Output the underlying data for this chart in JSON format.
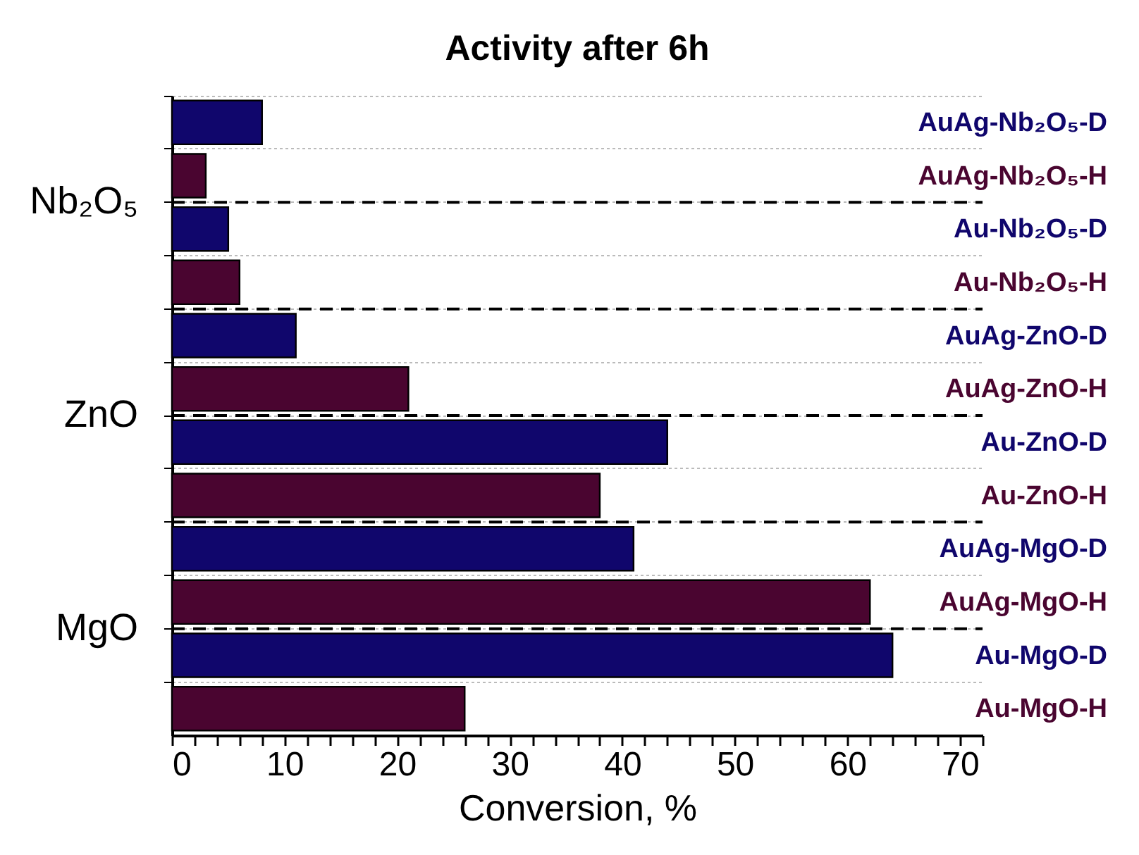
{
  "chart_data": {
    "type": "bar",
    "orientation": "horizontal",
    "title": "Activity after 6h",
    "xlabel": "Conversion, %",
    "categories": [
      "AuAg-Nb₂O₅-D",
      "AuAg-Nb₂O₅-H",
      "Au-Nb₂O₅-D",
      "Au-Nb₂O₅-H",
      "AuAg-ZnO-D",
      "AuAg-ZnO-H",
      "Au-ZnO-D",
      "Au-ZnO-H",
      "AuAg-MgO-D",
      "AuAg-MgO-H",
      "Au-MgO-D",
      "Au-MgO-H"
    ],
    "values": [
      8,
      3,
      5,
      6,
      11,
      21,
      44,
      38,
      41,
      62,
      64,
      26
    ],
    "colors": [
      "#10066c",
      "#4a0530",
      "#10066c",
      "#4a0530",
      "#10066c",
      "#4a0530",
      "#10066c",
      "#4a0530",
      "#10066c",
      "#4a0530",
      "#10066c",
      "#4a0530"
    ],
    "xlim": [
      0,
      72
    ],
    "xticks": [
      0,
      {
        "value": 2,
        "label": null
      },
      {
        "value": 4,
        "label": null
      },
      {
        "value": 6,
        "label": null
      },
      {
        "value": 8,
        "label": null
      },
      10,
      {
        "value": 12,
        "label": null
      },
      {
        "value": 14,
        "label": null
      },
      {
        "value": 16,
        "label": null
      },
      {
        "value": 18,
        "label": null
      },
      20,
      {
        "value": 22,
        "label": null
      },
      {
        "value": 24,
        "label": null
      },
      {
        "value": 26,
        "label": null
      },
      {
        "value": 28,
        "label": null
      },
      30,
      {
        "value": 32,
        "label": null
      },
      {
        "value": 34,
        "label": null
      },
      {
        "value": 36,
        "label": null
      },
      {
        "value": 38,
        "label": null
      },
      40,
      {
        "value": 42,
        "label": null
      },
      {
        "value": 44,
        "label": null
      },
      {
        "value": 46,
        "label": null
      },
      {
        "value": 48,
        "label": null
      },
      50,
      {
        "value": 52,
        "label": null
      },
      {
        "value": 54,
        "label": null
      },
      {
        "value": 56,
        "label": null
      },
      {
        "value": 58,
        "label": null
      },
      60,
      {
        "value": 62,
        "label": null
      },
      {
        "value": 64,
        "label": null
      },
      {
        "value": 66,
        "label": null
      },
      {
        "value": 68,
        "label": null
      },
      70,
      {
        "value": 72,
        "label": null
      }
    ],
    "grid": "y",
    "annotations": [
      "Nb₂O₅",
      "ZnO",
      "MgO"
    ]
  }
}
